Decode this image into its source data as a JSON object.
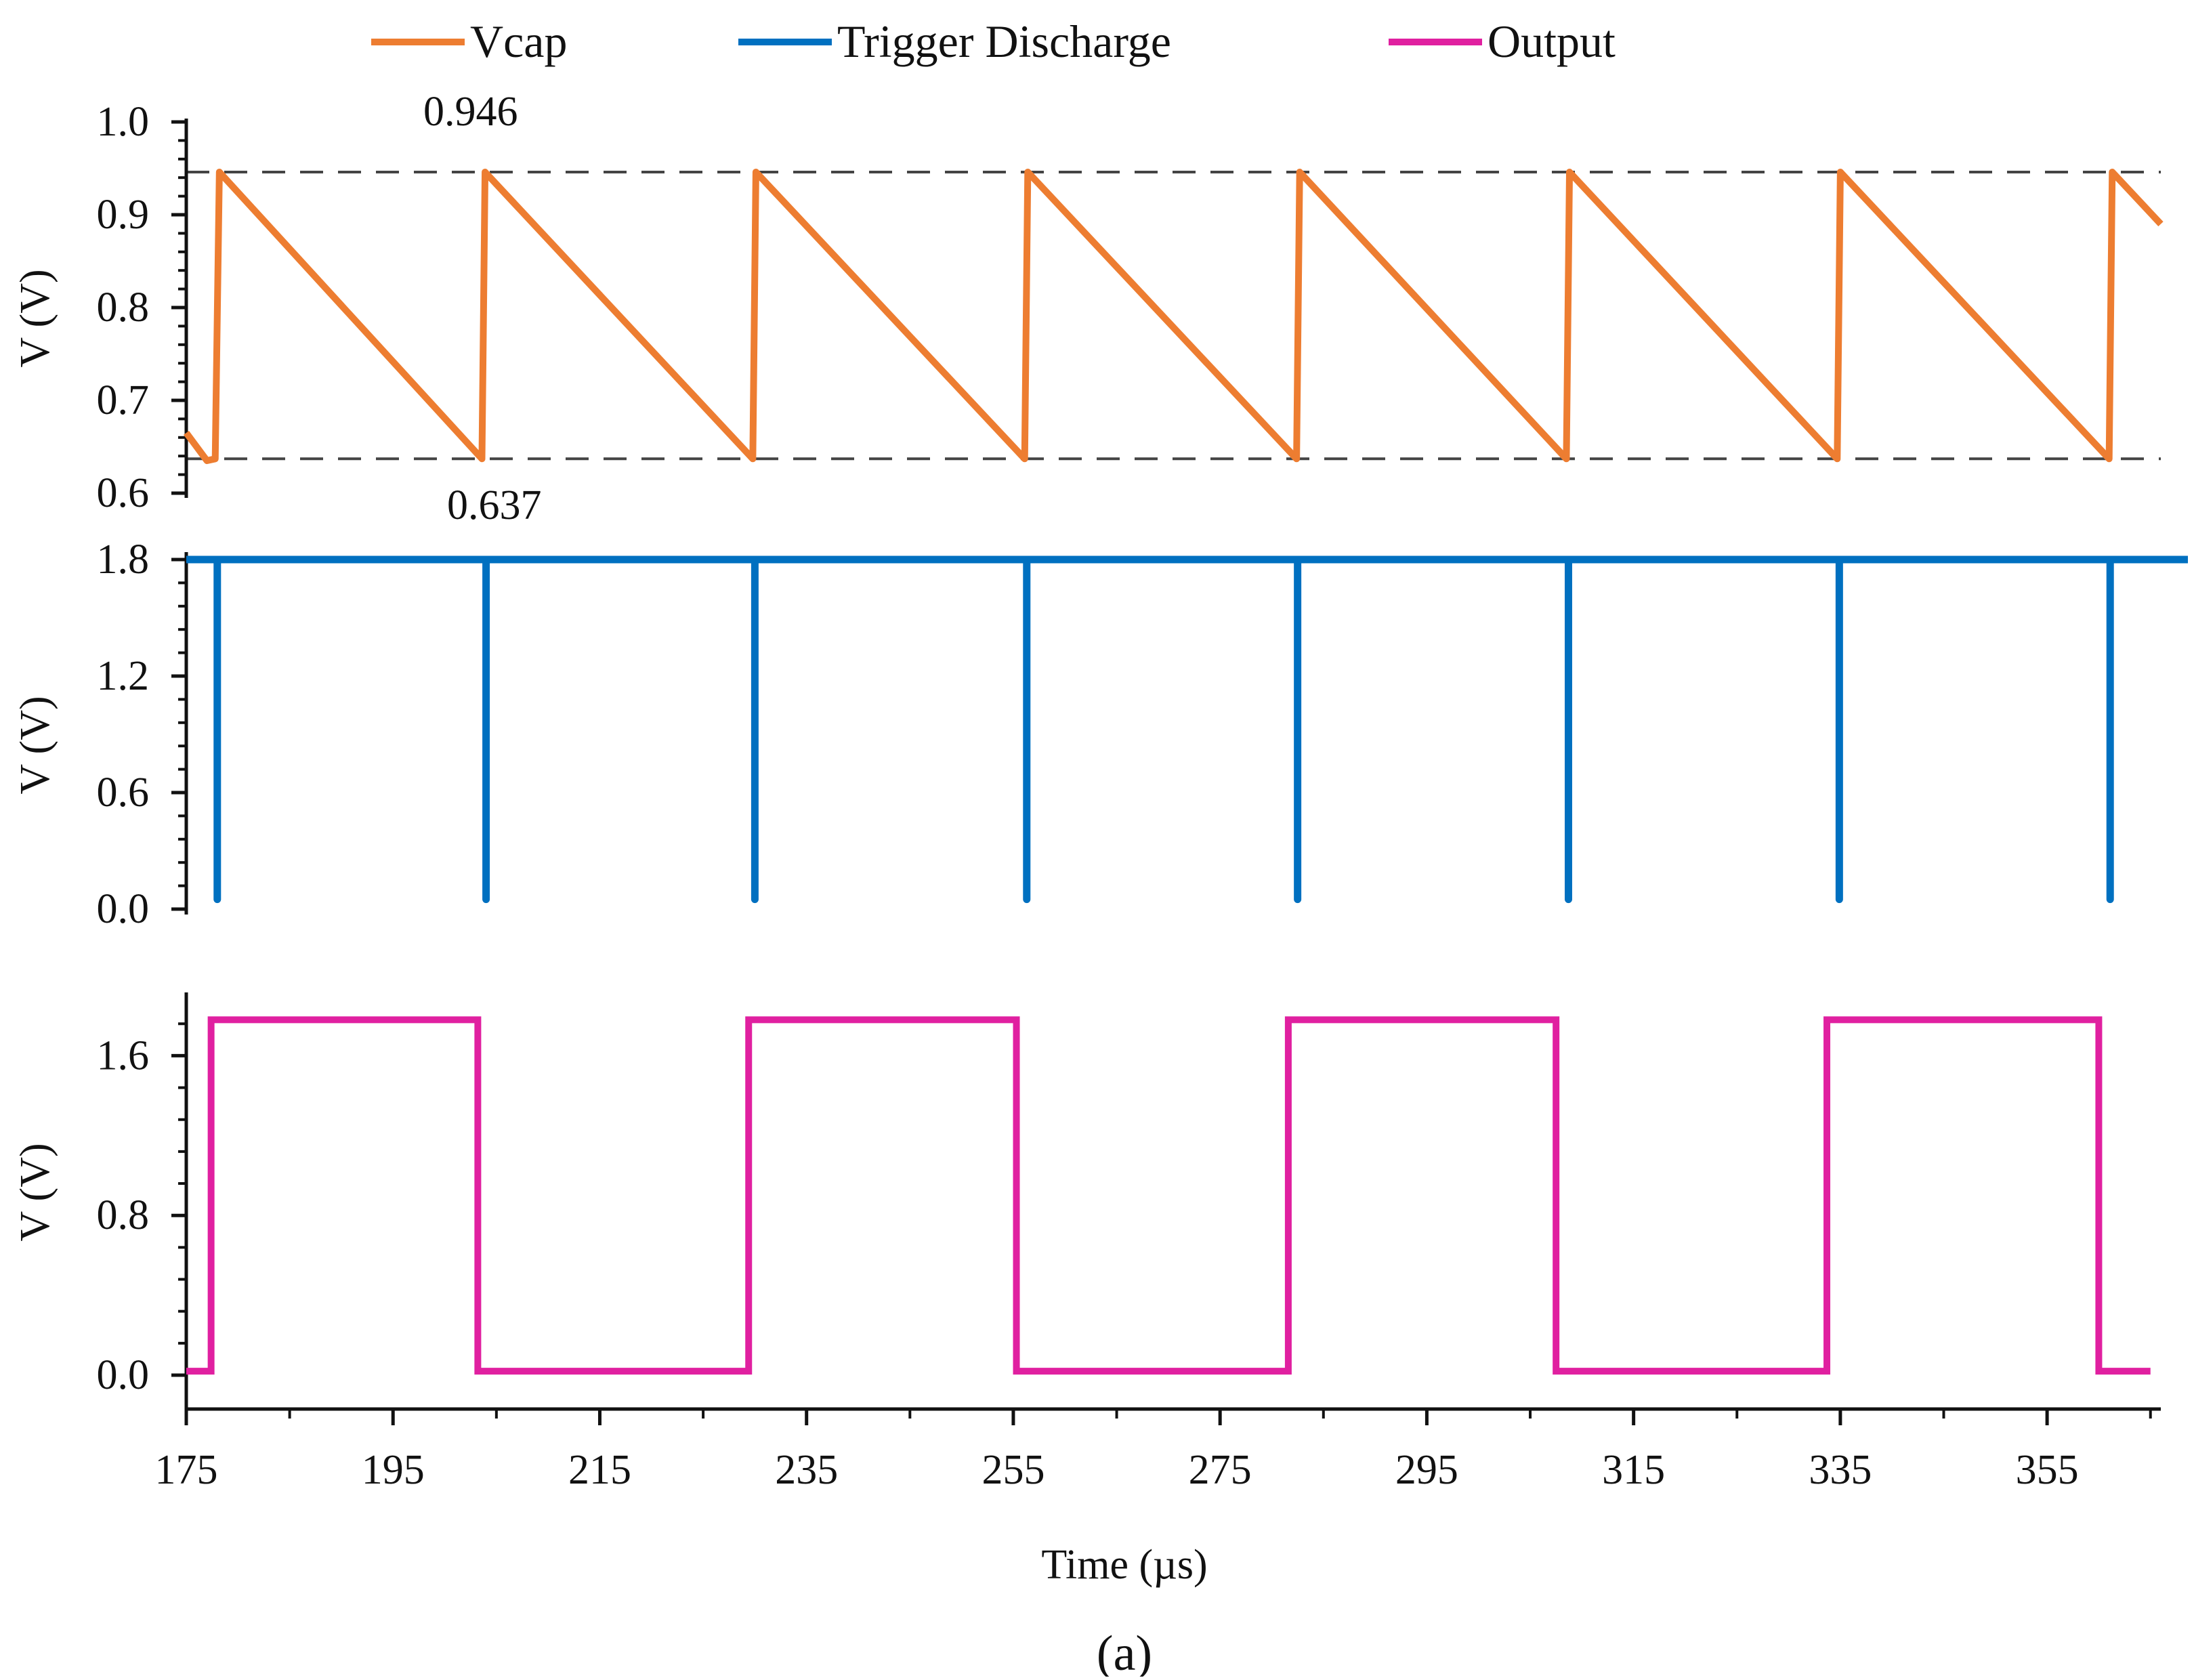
{
  "figure": {
    "caption": "(a)",
    "legend": [
      {
        "label": "Vcap",
        "color": "#ed7d31"
      },
      {
        "label": "Trigger Discharge",
        "color": "#0070c0"
      },
      {
        "label": "Output",
        "color": "#e020a0"
      }
    ]
  },
  "chart_data": [
    {
      "type": "line",
      "name": "Vcap",
      "color": "#ed7d31",
      "xlabel": "Time (µs)",
      "ylabel": "V (V)",
      "xlim": [
        175,
        366
      ],
      "ylim": [
        0.6,
        1.0
      ],
      "yticks": [
        "0.6",
        "0.7",
        "0.8",
        "0.9",
        "1.0"
      ],
      "ytick_values": [
        0.6,
        0.7,
        0.8,
        0.9,
        1.0
      ],
      "x": [
        175.0,
        177.0,
        177.8,
        178.2,
        203.6,
        203.9,
        229.8,
        230.1,
        256.1,
        256.4,
        282.4,
        282.7,
        308.5,
        308.8,
        334.7,
        335.0,
        361.0,
        361.3,
        366.0
      ],
      "y": [
        0.665,
        0.635,
        0.637,
        0.946,
        0.637,
        0.946,
        0.637,
        0.946,
        0.637,
        0.946,
        0.637,
        0.946,
        0.637,
        0.946,
        0.637,
        0.946,
        0.637,
        0.946,
        0.89
      ],
      "reference_lines": [
        {
          "value": 0.946,
          "label": "0.946"
        },
        {
          "value": 0.637,
          "label": "0.637"
        }
      ]
    },
    {
      "type": "line",
      "name": "Trigger Discharge",
      "color": "#0070c0",
      "xlabel": "Time (µs)",
      "ylabel": "V (V)",
      "xlim": [
        175,
        366
      ],
      "ylim": [
        0.0,
        1.8
      ],
      "yticks": [
        "0.0",
        "0.6",
        "1.2",
        "1.8"
      ],
      "ytick_values": [
        0.0,
        0.6,
        1.2,
        1.8
      ],
      "high": 1.8,
      "low": 0.05,
      "pulse_times": [
        178.0,
        204.0,
        230.0,
        256.3,
        282.5,
        308.7,
        334.9,
        361.1
      ]
    },
    {
      "type": "line",
      "name": "Output",
      "color": "#e020a0",
      "xlabel": "Time (µs)",
      "ylabel": "V (V)",
      "xlim": [
        175,
        366
      ],
      "ylim": [
        0.0,
        1.9
      ],
      "yticks": [
        "0.0",
        "0.8",
        "1.6"
      ],
      "ytick_values": [
        0.0,
        0.8,
        1.6
      ],
      "xticks": [
        "175",
        "195",
        "215",
        "235",
        "255",
        "275",
        "295",
        "315",
        "335",
        "355"
      ],
      "xtick_values": [
        175,
        195,
        215,
        235,
        255,
        275,
        295,
        315,
        335,
        355
      ],
      "x": [
        175,
        177.4,
        177.4,
        203.2,
        203.2,
        229.4,
        229.4,
        255.3,
        255.3,
        281.6,
        281.6,
        307.5,
        307.5,
        333.7,
        333.7,
        360.0,
        360.0,
        365.0
      ],
      "y": [
        0.02,
        0.02,
        1.78,
        1.78,
        0.02,
        0.02,
        1.78,
        1.78,
        0.02,
        0.02,
        1.78,
        1.78,
        0.02,
        0.02,
        1.78,
        1.78,
        0.02,
        0.02
      ]
    }
  ]
}
